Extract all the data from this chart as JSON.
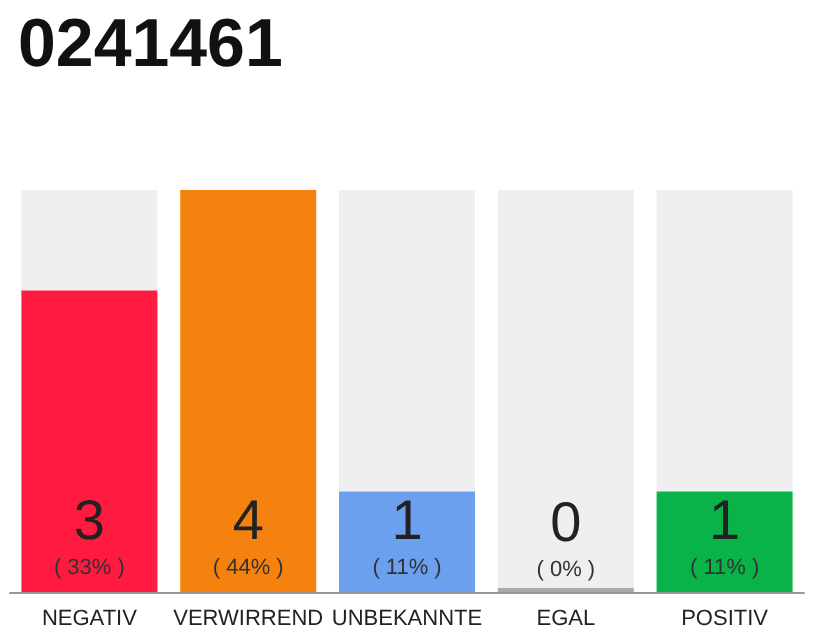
{
  "chart_data": {
    "type": "bar",
    "title": "0241461",
    "stacked": true,
    "categories": [
      "NEGATIV",
      "VERWIRREND",
      "UNBEKANNTE",
      "EGAL",
      "POSITIV"
    ],
    "series": [
      {
        "colors": [
          "#ff1a40",
          "#f5820f",
          "#6aa0ee",
          "#aaaaaa",
          "#0ab24a"
        ],
        "values": [
          3,
          4,
          1,
          0,
          1
        ],
        "value_labels": [
          "3\n( 33% )",
          "4\n( 44% )",
          "1\n( 11% )",
          "0\n( 0% )",
          "1\n( 11% )"
        ]
      },
      {
        "color": "#efefef",
        "values": [
          1,
          0,
          3,
          4,
          3
        ]
      }
    ],
    "grid": false
  }
}
